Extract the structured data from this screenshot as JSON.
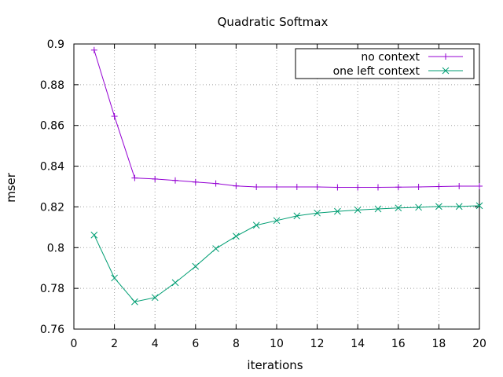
{
  "chart_data": {
    "type": "line",
    "title": "Quadratic Softmax",
    "xlabel": "iterations",
    "ylabel": "mser",
    "xlim": [
      0,
      20
    ],
    "ylim": [
      0.76,
      0.9
    ],
    "xticks": [
      0,
      2,
      4,
      6,
      8,
      10,
      12,
      14,
      16,
      18,
      20
    ],
    "yticks": [
      0.76,
      0.78,
      0.8,
      0.82,
      0.84,
      0.86,
      0.88,
      0.9
    ],
    "xtick_labels": [
      "0",
      "2",
      "4",
      "6",
      "8",
      "10",
      "12",
      "14",
      "16",
      "18",
      "20"
    ],
    "ytick_labels": [
      "0.76",
      "0.78",
      "0.8",
      "0.82",
      "0.84",
      "0.86",
      "0.88",
      "0.9"
    ],
    "grid": true,
    "grid_style": "dotted",
    "legend_position": "top-right",
    "x": [
      1,
      2,
      3,
      4,
      5,
      6,
      7,
      8,
      9,
      10,
      11,
      12,
      13,
      14,
      15,
      16,
      17,
      18,
      19,
      20
    ],
    "series": [
      {
        "name": "no context",
        "color": "#9400d3",
        "marker": "plus",
        "values": [
          0.897,
          0.8645,
          0.8342,
          0.8337,
          0.833,
          0.8322,
          0.8315,
          0.8303,
          0.8298,
          0.8298,
          0.8298,
          0.8298,
          0.8296,
          0.8296,
          0.8296,
          0.8297,
          0.8298,
          0.83,
          0.8302,
          0.8302
        ]
      },
      {
        "name": "one left context",
        "color": "#009e73",
        "marker": "cross",
        "values": [
          0.8062,
          0.7851,
          0.7734,
          0.7755,
          0.7828,
          0.7908,
          0.7995,
          0.8056,
          0.811,
          0.8133,
          0.8156,
          0.817,
          0.8178,
          0.8185,
          0.819,
          0.8195,
          0.8198,
          0.8202,
          0.8202,
          0.8206
        ]
      }
    ]
  }
}
